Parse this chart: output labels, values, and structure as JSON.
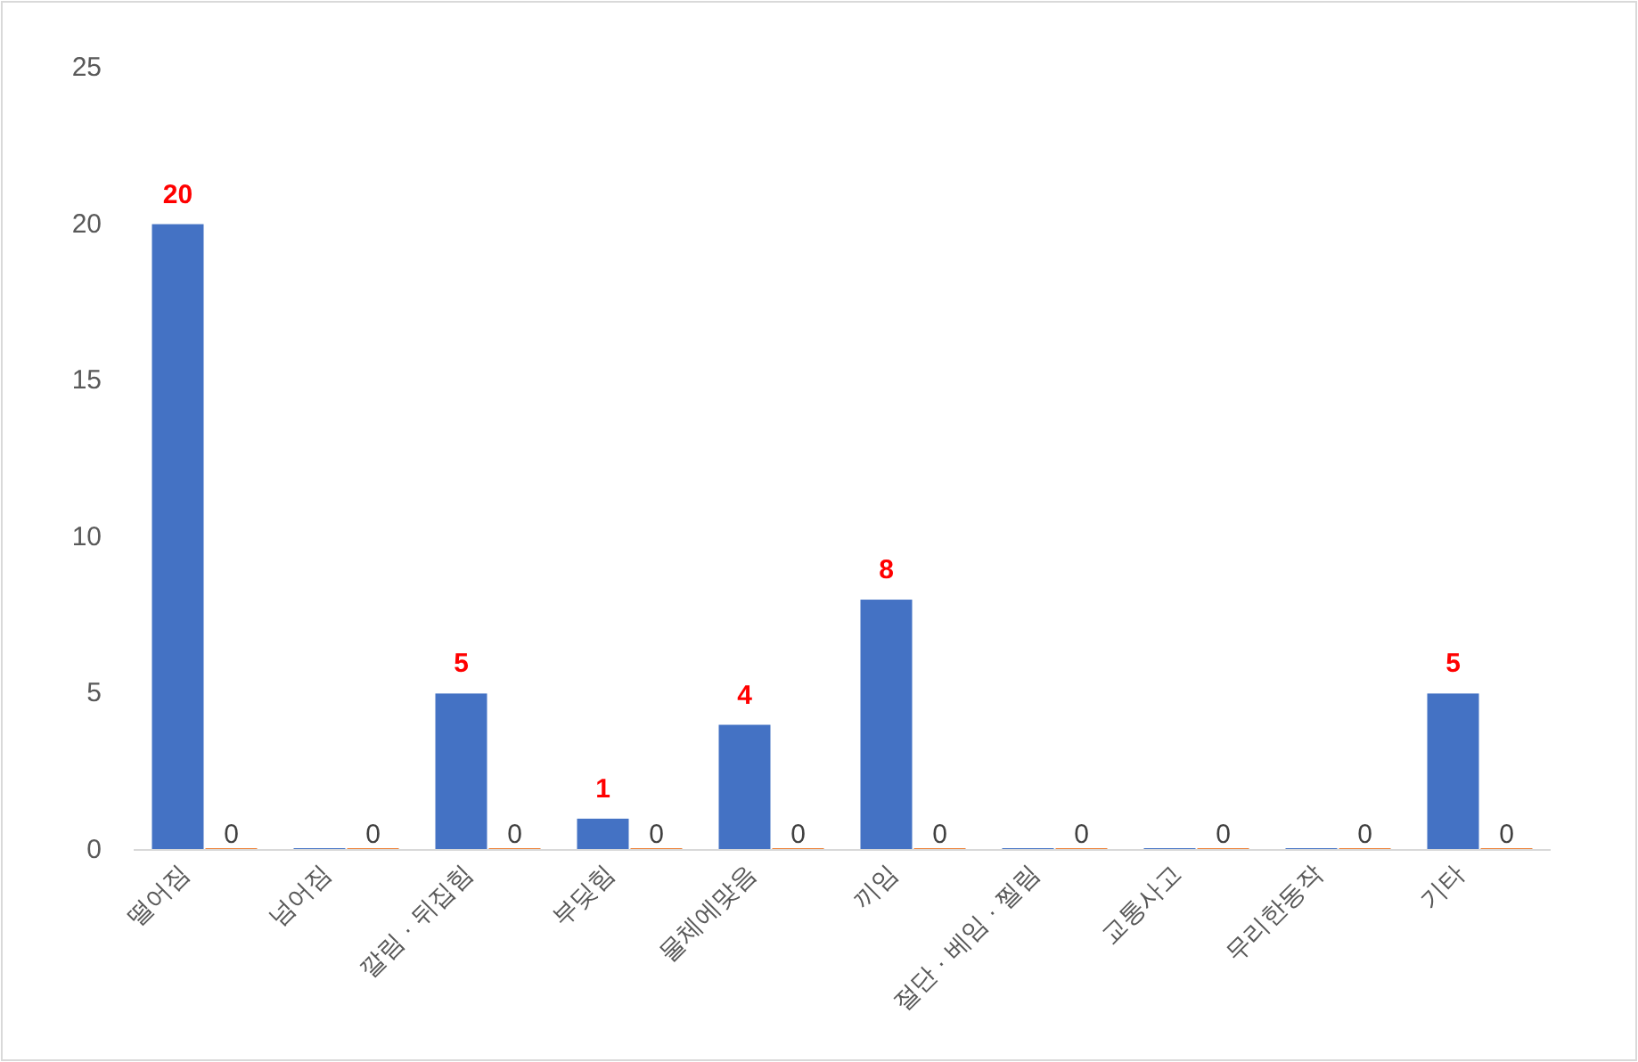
{
  "chart_data": {
    "type": "bar",
    "categories": [
      "떨어짐",
      "넘어짐",
      "깔림 · 뒤집힘",
      "부딪힘",
      "물체에맞음",
      "끼임",
      "절단 · 베임 · 찔림",
      "교통사고",
      "무리한동작",
      "기타"
    ],
    "series": [
      {
        "color": "#4472c4",
        "values": [
          20,
          0,
          5,
          1,
          4,
          8,
          0,
          0,
          0,
          5
        ],
        "value_labels": [
          "20",
          null,
          "5",
          "1",
          "4",
          "8",
          null,
          null,
          null,
          "5"
        ]
      },
      {
        "color": "#ed7d31",
        "values": [
          0,
          0,
          0,
          0,
          0,
          0,
          0,
          0,
          0,
          0
        ],
        "value_labels": [
          "0",
          "0",
          "0",
          "0",
          "0",
          "0",
          "0",
          "0",
          "0",
          "0"
        ]
      }
    ],
    "ylim": [
      0,
      25
    ],
    "yticks": [
      0,
      5,
      10,
      15,
      20,
      25
    ],
    "grid": false
  }
}
